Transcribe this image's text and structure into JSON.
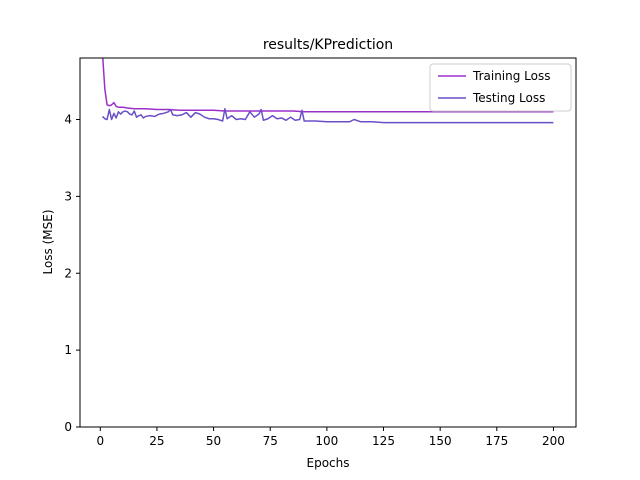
{
  "chart_data": {
    "type": "line",
    "title": "results/KPrediction",
    "xlabel": "Epochs",
    "ylabel": "Loss (MSE)",
    "xlim": [
      -8.95,
      209.95
    ],
    "ylim": [
      0,
      4.8
    ],
    "xticks": [
      0,
      25,
      50,
      75,
      100,
      125,
      150,
      175,
      200
    ],
    "yticks": [
      0,
      1,
      2,
      3,
      4
    ],
    "grid": false,
    "legend_position": "top-right",
    "series": [
      {
        "name": "Training Loss",
        "color": "#9b30c8",
        "x": [
          1,
          2,
          3,
          4,
          5,
          6,
          7,
          8,
          10,
          12,
          15,
          18,
          20,
          25,
          30,
          35,
          40,
          45,
          50,
          55,
          60,
          65,
          70,
          75,
          80,
          85,
          90,
          95,
          100,
          110,
          120,
          130,
          140,
          150,
          160,
          170,
          180,
          190,
          200
        ],
        "y": [
          4.85,
          4.4,
          4.19,
          4.18,
          4.19,
          4.22,
          4.17,
          4.16,
          4.16,
          4.15,
          4.14,
          4.14,
          4.14,
          4.13,
          4.13,
          4.12,
          4.12,
          4.12,
          4.12,
          4.11,
          4.11,
          4.11,
          4.11,
          4.11,
          4.11,
          4.11,
          4.1,
          4.1,
          4.1,
          4.1,
          4.1,
          4.1,
          4.1,
          4.1,
          4.1,
          4.1,
          4.1,
          4.1,
          4.1
        ]
      },
      {
        "name": "Testing Loss",
        "color": "#6a4fc8",
        "x": [
          1,
          2,
          3,
          4,
          5,
          6,
          7,
          8,
          9,
          10,
          11,
          12,
          13,
          14,
          15,
          16,
          17,
          18,
          19,
          20,
          22,
          24,
          26,
          28,
          30,
          31,
          32,
          34,
          36,
          38,
          40,
          42,
          44,
          46,
          48,
          50,
          52,
          54,
          55,
          56,
          58,
          60,
          62,
          64,
          66,
          68,
          70,
          71,
          72,
          74,
          76,
          78,
          80,
          82,
          84,
          86,
          88,
          89,
          90,
          92,
          95,
          100,
          105,
          110,
          112,
          115,
          120,
          125,
          130,
          135,
          140,
          150,
          160,
          170,
          180,
          190,
          200
        ],
        "y": [
          4.04,
          4.01,
          4.0,
          4.13,
          4.0,
          4.08,
          4.02,
          4.1,
          4.07,
          4.1,
          4.11,
          4.1,
          4.07,
          4.06,
          4.11,
          4.03,
          4.05,
          4.06,
          4.02,
          4.04,
          4.05,
          4.04,
          4.07,
          4.08,
          4.1,
          4.13,
          4.06,
          4.05,
          4.06,
          4.09,
          4.03,
          4.09,
          4.07,
          4.03,
          4.01,
          4.01,
          4.0,
          3.98,
          4.14,
          4.01,
          4.05,
          4.0,
          4.01,
          4.0,
          4.1,
          4.03,
          4.07,
          4.13,
          3.99,
          4.01,
          4.05,
          4.01,
          4.02,
          3.99,
          4.03,
          3.99,
          4.0,
          4.12,
          3.98,
          3.98,
          3.98,
          3.97,
          3.97,
          3.97,
          4.0,
          3.97,
          3.97,
          3.96,
          3.96,
          3.96,
          3.96,
          3.96,
          3.96,
          3.96,
          3.96,
          3.96,
          3.96
        ]
      }
    ]
  }
}
